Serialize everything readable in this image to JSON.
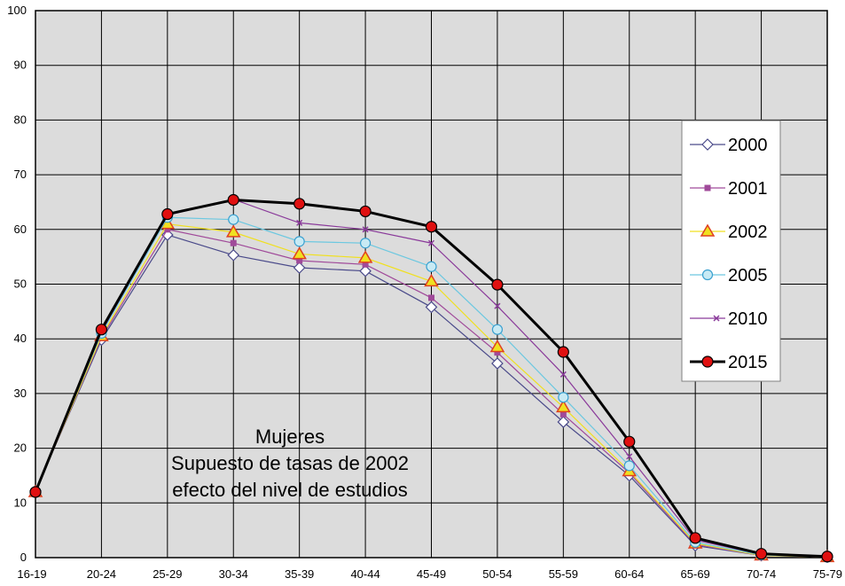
{
  "chart_data": {
    "type": "line",
    "title": "",
    "xlabel": "",
    "ylabel": "",
    "ylim": [
      0,
      100
    ],
    "yticks": [
      0,
      10,
      20,
      30,
      40,
      50,
      60,
      70,
      80,
      90,
      100
    ],
    "grid": true,
    "legend_position": "right",
    "categories": [
      "16-19",
      "20-24",
      "25-29",
      "30-34",
      "35-39",
      "40-44",
      "45-49",
      "50-54",
      "55-59",
      "60-64",
      "65-69",
      "70-74",
      "75-79"
    ],
    "annotation": [
      "Mujeres",
      "Supuesto de tasas de 2002",
      "efecto del nivel de estudios"
    ],
    "series": [
      {
        "name": "2000",
        "color": "#4a4a8a",
        "marker": "diamond",
        "values": [
          12.2,
          39.8,
          59.0,
          55.3,
          53.0,
          52.4,
          45.8,
          35.5,
          24.8,
          15.0,
          2.2,
          0.4,
          0.1
        ]
      },
      {
        "name": "2001",
        "color": "#a04a9a",
        "marker": "square",
        "values": [
          12.1,
          40.2,
          60.0,
          57.5,
          54.3,
          53.6,
          47.5,
          37.5,
          26.2,
          15.5,
          2.4,
          0.4,
          0.1
        ]
      },
      {
        "name": "2002",
        "color": "#f0e020",
        "marker": "triangle",
        "values": [
          12.0,
          40.5,
          61.0,
          59.5,
          55.5,
          54.8,
          50.5,
          38.5,
          27.5,
          15.8,
          2.6,
          0.4,
          0.1
        ]
      },
      {
        "name": "2005",
        "color": "#6cc8e0",
        "marker": "circle-open",
        "values": [
          12.0,
          41.0,
          62.2,
          61.8,
          57.8,
          57.5,
          53.2,
          41.7,
          29.3,
          16.8,
          2.8,
          0.5,
          0.1
        ]
      },
      {
        "name": "2010",
        "color": "#8a3a9a",
        "marker": "x",
        "values": [
          12.0,
          41.3,
          62.6,
          65.5,
          61.2,
          60.0,
          57.5,
          46.0,
          33.5,
          18.5,
          3.2,
          0.6,
          0.2
        ]
      },
      {
        "name": "2015",
        "color": "#000000",
        "marker": "circle-filled",
        "values": [
          12.0,
          41.7,
          62.8,
          65.4,
          64.7,
          63.3,
          60.5,
          49.9,
          37.6,
          21.2,
          3.6,
          0.7,
          0.2
        ]
      }
    ]
  }
}
